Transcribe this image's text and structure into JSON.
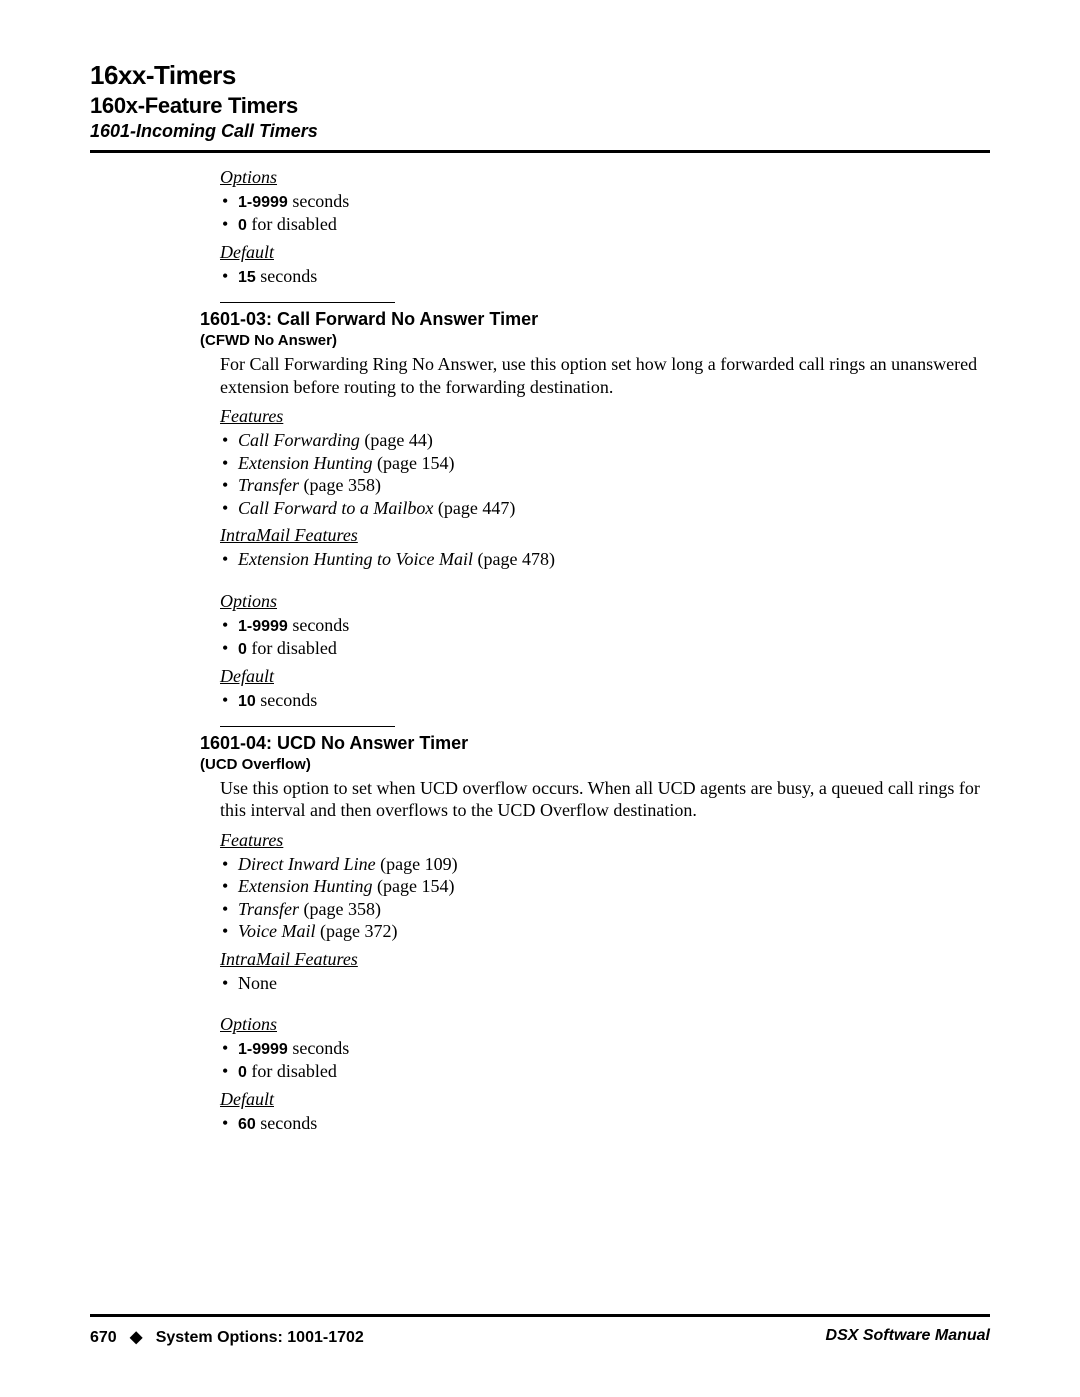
{
  "header": {
    "h1": "16xx-Timers",
    "h2": "160x-Feature Timers",
    "h3": "1601-Incoming Call Timers"
  },
  "section0": {
    "options_label": "Options",
    "opt_items": [
      {
        "bold": "1-9999",
        "rest": " seconds"
      },
      {
        "bold": "0",
        "rest": " for disabled"
      }
    ],
    "default_label": "Default",
    "def_items": [
      {
        "bold": "15",
        "rest": " seconds"
      }
    ]
  },
  "section1": {
    "title": "1601-03: Call Forward No Answer Timer",
    "subtitle": "(CFWD No Answer)",
    "description": "For Call Forwarding Ring No Answer, use this option set how long a forwarded call rings an unanswered extension before routing to the forwarding destination.",
    "features_label": "Features",
    "features": [
      {
        "name": "Call Forwarding",
        "page": " (page 44)"
      },
      {
        "name": "Extension Hunting",
        "page": " (page 154)"
      },
      {
        "name": "Transfer",
        "page": " (page 358)"
      },
      {
        "name": "Call Forward to a Mailbox",
        "page": " (page 447)"
      }
    ],
    "intramail_label": "IntraMail Features",
    "intramail": [
      {
        "name": "Extension Hunting to Voice Mail",
        "page": " (page 478)"
      }
    ],
    "options_label": "Options",
    "opt_items": [
      {
        "bold": "1-9999",
        "rest": " seconds"
      },
      {
        "bold": "0",
        "rest": " for disabled"
      }
    ],
    "default_label": "Default",
    "def_items": [
      {
        "bold": "10",
        "rest": " seconds"
      }
    ]
  },
  "section2": {
    "title": "1601-04: UCD No Answer Timer",
    "subtitle": "(UCD Overflow)",
    "description": "Use this option to set when UCD overflow occurs. When all UCD agents are busy, a queued call rings for this interval and then overflows to the UCD Overflow destination.",
    "features_label": "Features",
    "features": [
      {
        "name": "Direct Inward Line",
        "page": " (page 109)"
      },
      {
        "name": "Extension Hunting",
        "page": " (page 154)"
      },
      {
        "name": "Transfer",
        "page": " (page 358)"
      },
      {
        "name": "Voice Mail",
        "page": " (page 372)"
      }
    ],
    "intramail_label": "IntraMail Features",
    "intramail_none": "None",
    "options_label": "Options",
    "opt_items": [
      {
        "bold": "1-9999",
        "rest": " seconds"
      },
      {
        "bold": "0",
        "rest": " for disabled"
      }
    ],
    "default_label": "Default",
    "def_items": [
      {
        "bold": "60",
        "rest": " seconds"
      }
    ]
  },
  "footer": {
    "page_num": "670",
    "diamond": "◆",
    "left_text": "System Options: 1001-1702",
    "right_text": "DSX Software Manual"
  }
}
